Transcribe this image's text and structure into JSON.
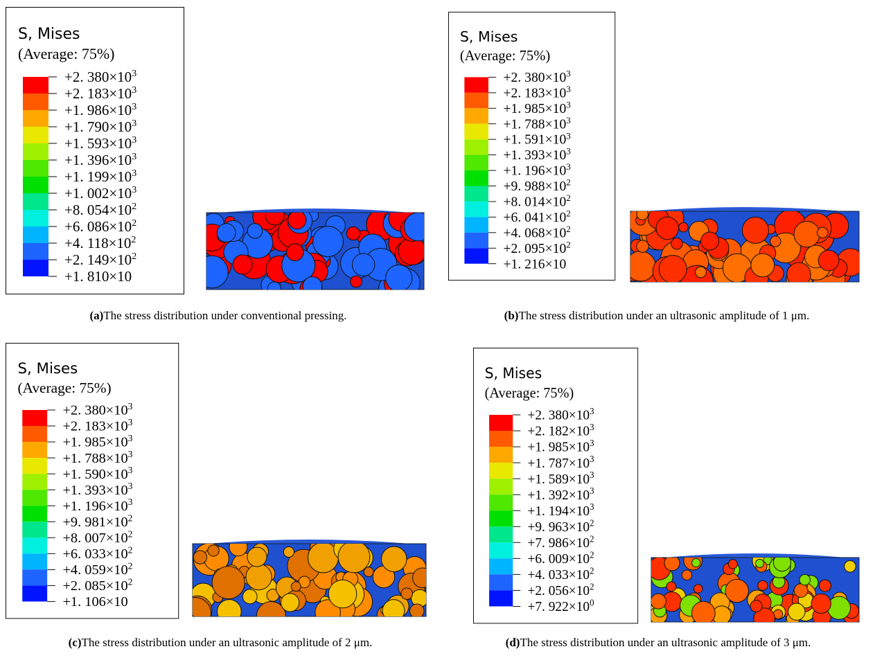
{
  "panels": [
    {
      "legend": {
        "title": "S, Mises",
        "subtitle": "(Average: 75%)",
        "labels": [
          {
            "text": "+2. 380×10",
            "sup": "3"
          },
          {
            "text": "+2. 183×10",
            "sup": "3"
          },
          {
            "text": "+1. 986×10",
            "sup": "3"
          },
          {
            "text": "+1. 790×10",
            "sup": "3"
          },
          {
            "text": "+1. 593×10",
            "sup": "3"
          },
          {
            "text": "+1. 396×10",
            "sup": "3"
          },
          {
            "text": "+1. 199×10",
            "sup": "3"
          },
          {
            "text": "+1. 002×10",
            "sup": "3"
          },
          {
            "text": "+8. 054×10",
            "sup": "2"
          },
          {
            "text": "+6. 086×10",
            "sup": "2"
          },
          {
            "text": "+4. 118×10",
            "sup": "2"
          },
          {
            "text": "+2. 149×10",
            "sup": "2"
          },
          {
            "text": "+1. 810×10"
          }
        ]
      },
      "caption": {
        "tag": "(a)",
        "text": "The stress distribution under conventional pressing."
      }
    },
    {
      "legend": {
        "title": "S, Mises",
        "subtitle": "(Average: 75%)",
        "labels": [
          {
            "text": "+2. 380×10",
            "sup": "3"
          },
          {
            "text": "+2. 183×10",
            "sup": "3"
          },
          {
            "text": "+1. 985×10",
            "sup": "3"
          },
          {
            "text": "+1. 788×10",
            "sup": "3"
          },
          {
            "text": "+1. 591×10",
            "sup": "3"
          },
          {
            "text": "+1. 393×10",
            "sup": "3"
          },
          {
            "text": "+1. 196×10",
            "sup": "3"
          },
          {
            "text": "+9. 988×10",
            "sup": "2"
          },
          {
            "text": "+8. 014×10",
            "sup": "2"
          },
          {
            "text": "+6. 041×10",
            "sup": "2"
          },
          {
            "text": "+4. 068×10",
            "sup": "2"
          },
          {
            "text": "+2. 095×10",
            "sup": "2"
          },
          {
            "text": "+1. 216×10"
          }
        ]
      },
      "caption": {
        "tag": "(b)",
        "text": "The stress distribution under an ultrasonic amplitude of 1 μm."
      }
    },
    {
      "legend": {
        "title": "S, Mises",
        "subtitle": "(Average: 75%)",
        "labels": [
          {
            "text": "+2. 380×10",
            "sup": "3"
          },
          {
            "text": "+2. 183×10",
            "sup": "3"
          },
          {
            "text": "+1. 985×10",
            "sup": "3"
          },
          {
            "text": "+1. 788×10",
            "sup": "3"
          },
          {
            "text": "+1. 590×10",
            "sup": "3"
          },
          {
            "text": "+1. 393×10",
            "sup": "3"
          },
          {
            "text": "+1. 196×10",
            "sup": "3"
          },
          {
            "text": "+9. 981×10",
            "sup": "2"
          },
          {
            "text": "+8. 007×10",
            "sup": "2"
          },
          {
            "text": "+6. 033×10",
            "sup": "2"
          },
          {
            "text": "+4. 059×10",
            "sup": "2"
          },
          {
            "text": "+2. 085×10",
            "sup": "2"
          },
          {
            "text": "+1. 106×10"
          }
        ]
      },
      "caption": {
        "tag": "(c)",
        "text": "The stress distribution under an ultrasonic amplitude of 2 μm."
      }
    },
    {
      "legend": {
        "title": "S, Mises",
        "subtitle": "(Average: 75%)",
        "labels": [
          {
            "text": "+2. 380×10",
            "sup": "3"
          },
          {
            "text": "+2. 182×10",
            "sup": "3"
          },
          {
            "text": "+1. 985×10",
            "sup": "3"
          },
          {
            "text": "+1. 787×10",
            "sup": "3"
          },
          {
            "text": "+1. 589×10",
            "sup": "3"
          },
          {
            "text": "+1. 392×10",
            "sup": "3"
          },
          {
            "text": "+1. 194×10",
            "sup": "3"
          },
          {
            "text": "+9. 963×10",
            "sup": "2"
          },
          {
            "text": "+7. 986×10",
            "sup": "2"
          },
          {
            "text": "+6. 009×10",
            "sup": "2"
          },
          {
            "text": "+4. 033×10",
            "sup": "2"
          },
          {
            "text": "+2. 056×10",
            "sup": "2"
          },
          {
            "text": "+7. 922×10",
            "sup": "0"
          }
        ]
      },
      "caption": {
        "tag": "(d)",
        "text": "The stress distribution under an ultrasonic amplitude of 3 μm."
      }
    }
  ]
}
